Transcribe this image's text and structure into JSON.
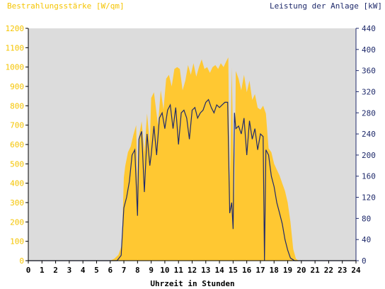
{
  "chart_data": {
    "type": "area",
    "title_left": "Bestrahlungsstärke [W/qm]",
    "title_right": "Leistung der Anlage [kW]",
    "xlabel": "Uhrzeit in Stunden",
    "xlim": [
      0,
      24
    ],
    "x_ticks": [
      "0",
      "1",
      "2",
      "3",
      "4",
      "5",
      "6",
      "7",
      "8",
      "9",
      "10",
      "11",
      "12",
      "13",
      "14",
      "15",
      "16",
      "17",
      "18",
      "19",
      "20",
      "21",
      "22",
      "23",
      "24"
    ],
    "y_left": {
      "lim": [
        0,
        1200
      ],
      "ticks": [
        "0",
        "100",
        "200",
        "300",
        "400",
        "500",
        "600",
        "700",
        "800",
        "900",
        "1000",
        "1100",
        "1200"
      ]
    },
    "y_right": {
      "lim": [
        0,
        440
      ],
      "ticks": [
        "0",
        "40",
        "80",
        "120",
        "160",
        "200",
        "240",
        "280",
        "320",
        "360",
        "400",
        "440"
      ]
    },
    "grid": false,
    "colors": {
      "plot_bg": "#dcdcdc",
      "irradiance": "#ffc832",
      "power": "#1f2a6b",
      "left_axis_text": "#f5c400",
      "right_axis_text": "#1f2a6b"
    },
    "series": [
      {
        "axis": "left",
        "kind": "area",
        "x": [
          0,
          6.0,
          6.3,
          6.6,
          6.85,
          7.0,
          7.1,
          7.3,
          7.5,
          7.7,
          7.9,
          8.0,
          8.1,
          8.3,
          8.5,
          8.7,
          8.9,
          9.0,
          9.2,
          9.5,
          9.7,
          9.9,
          10.1,
          10.3,
          10.5,
          10.7,
          10.9,
          11.1,
          11.3,
          11.5,
          11.7,
          11.9,
          12.1,
          12.3,
          12.5,
          12.7,
          12.9,
          13.1,
          13.3,
          13.5,
          13.7,
          13.9,
          14.1,
          14.3,
          14.5,
          14.65,
          14.75,
          14.8,
          14.9,
          15.0,
          15.1,
          15.2,
          15.4,
          15.6,
          15.8,
          16.0,
          16.2,
          16.4,
          16.6,
          16.8,
          17.0,
          17.2,
          17.4,
          17.6,
          17.8,
          18.0,
          18.2,
          18.4,
          18.6,
          18.8,
          19.0,
          19.2,
          19.4,
          19.6,
          19.8,
          20.0,
          24
        ],
        "values": [
          0,
          0,
          10,
          30,
          80,
          430,
          490,
          560,
          590,
          650,
          700,
          380,
          640,
          720,
          560,
          760,
          600,
          840,
          870,
          700,
          880,
          780,
          940,
          960,
          900,
          990,
          1000,
          990,
          880,
          930,
          1010,
          960,
          1020,
          950,
          1000,
          1040,
          990,
          1000,
          970,
          1000,
          1010,
          990,
          1020,
          1000,
          1030,
          1050,
          400,
          520,
          1000,
          600,
          300,
          980,
          940,
          880,
          960,
          870,
          930,
          830,
          860,
          790,
          780,
          800,
          760,
          580,
          560,
          500,
          470,
          440,
          400,
          360,
          300,
          200,
          60,
          10,
          0,
          0,
          0
        ]
      },
      {
        "axis": "right",
        "kind": "line",
        "x": [
          0,
          6.5,
          6.8,
          7.0,
          7.2,
          7.4,
          7.6,
          7.8,
          8.0,
          8.1,
          8.3,
          8.5,
          8.7,
          8.9,
          9.0,
          9.2,
          9.4,
          9.6,
          9.8,
          10.0,
          10.2,
          10.4,
          10.6,
          10.8,
          11.0,
          11.2,
          11.4,
          11.6,
          11.8,
          12.0,
          12.2,
          12.4,
          12.6,
          12.8,
          13.0,
          13.2,
          13.4,
          13.6,
          13.8,
          14.0,
          14.2,
          14.4,
          14.6,
          14.75,
          14.9,
          15.0,
          15.1,
          15.2,
          15.4,
          15.6,
          15.8,
          16.0,
          16.2,
          16.4,
          16.6,
          16.8,
          17.0,
          17.2,
          17.3,
          17.4,
          17.6,
          17.8,
          18.0,
          18.2,
          18.4,
          18.6,
          18.8,
          19.0,
          19.2,
          19.5,
          24
        ],
        "values": [
          0,
          0,
          10,
          100,
          120,
          150,
          200,
          210,
          85,
          230,
          245,
          130,
          240,
          180,
          200,
          255,
          200,
          270,
          280,
          250,
          285,
          295,
          250,
          290,
          220,
          280,
          285,
          270,
          230,
          285,
          290,
          270,
          280,
          285,
          300,
          305,
          290,
          280,
          295,
          290,
          295,
          300,
          300,
          90,
          110,
          60,
          280,
          250,
          255,
          240,
          270,
          200,
          265,
          230,
          250,
          210,
          240,
          235,
          0,
          210,
          200,
          160,
          140,
          110,
          90,
          70,
          40,
          20,
          5,
          0,
          0
        ]
      }
    ]
  }
}
